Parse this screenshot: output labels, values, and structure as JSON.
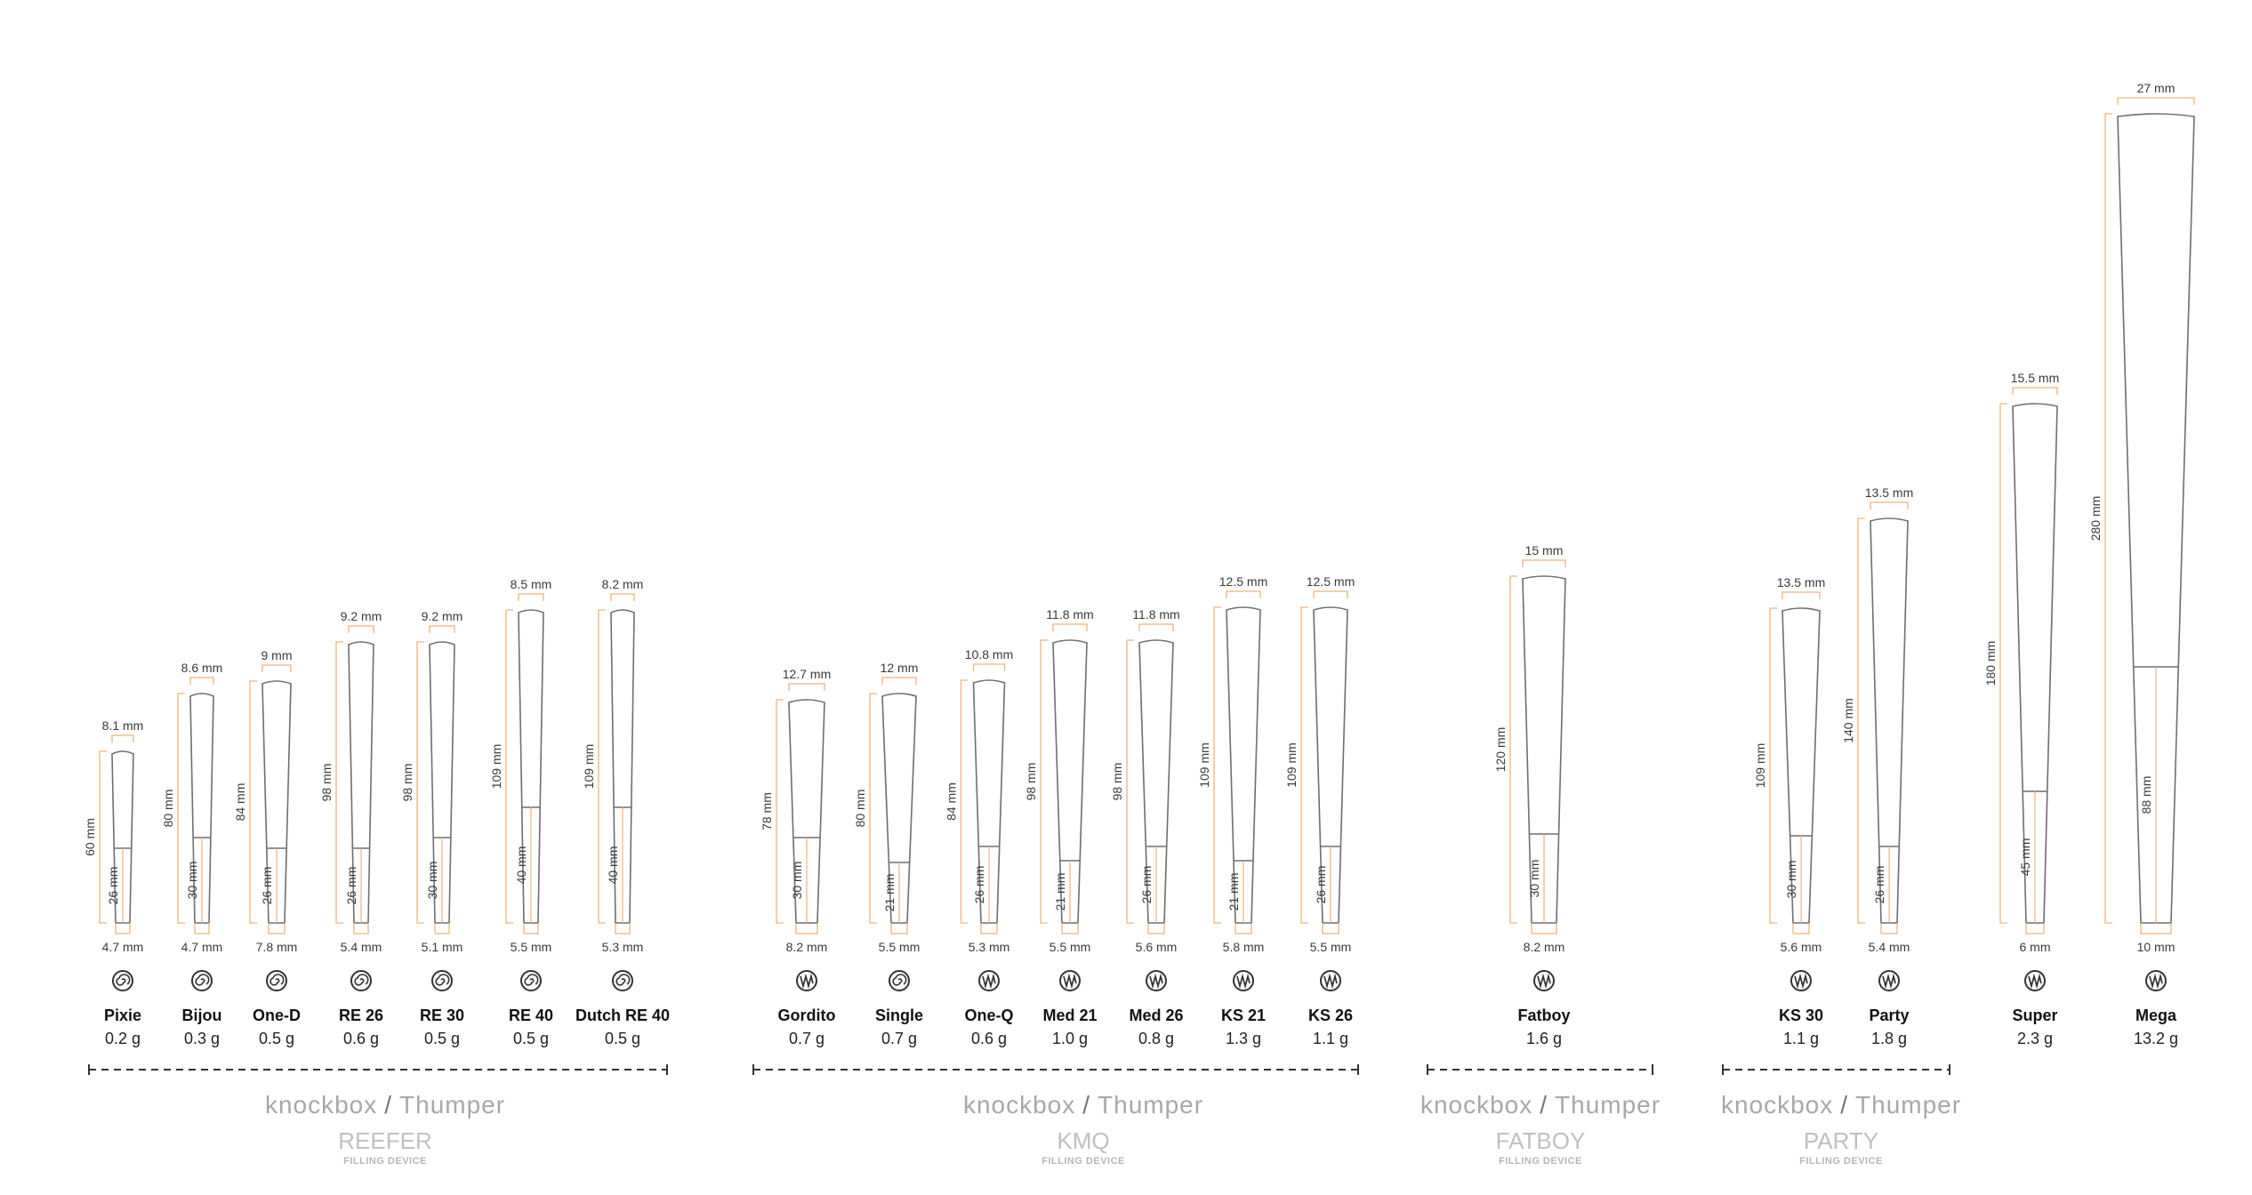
{
  "colors": {
    "accent": "#f0b27a",
    "outline": "#6f6f6f",
    "text": "#222222",
    "brand": "#a8a8a8"
  },
  "cones": [
    {
      "name": "Pixie",
      "weight": "0.2 g",
      "top": "8.1 mm",
      "length": "60 mm",
      "filter": "26 mm",
      "bottom": "4.7 mm",
      "icon": "spiral-filter-icon",
      "length_mm": 60,
      "filter_mm": 26,
      "top_mm": 8.1,
      "bottom_mm": 4.7
    },
    {
      "name": "Bijou",
      "weight": "0.3 g",
      "top": "8.6 mm",
      "length": "80 mm",
      "filter": "30 mm",
      "bottom": "4.7 mm",
      "icon": "spiral-filter-icon",
      "length_mm": 80,
      "filter_mm": 30,
      "top_mm": 8.6,
      "bottom_mm": 4.7
    },
    {
      "name": "One-D",
      "weight": "0.5 g",
      "top": "9 mm",
      "length": "84 mm",
      "filter": "26 mm",
      "bottom": "7.8 mm",
      "icon": "spiral-filter-icon",
      "length_mm": 84,
      "filter_mm": 26,
      "top_mm": 9,
      "bottom_mm": 7.8
    },
    {
      "name": "RE 26",
      "weight": "0.6 g",
      "top": "9.2 mm",
      "length": "98 mm",
      "filter": "26 mm",
      "bottom": "5.4 mm",
      "icon": "spiral-filter-icon",
      "length_mm": 98,
      "filter_mm": 26,
      "top_mm": 9.2,
      "bottom_mm": 5.4
    },
    {
      "name": "RE 30",
      "weight": "0.5 g",
      "top": "9.2 mm",
      "length": "98 mm",
      "filter": "30 mm",
      "bottom": "5.1 mm",
      "icon": "spiral-filter-icon",
      "length_mm": 98,
      "filter_mm": 30,
      "top_mm": 9.2,
      "bottom_mm": 5.1
    },
    {
      "name": "RE 40",
      "weight": "0.5 g",
      "top": "8.5 mm",
      "length": "109 mm",
      "filter": "40 mm",
      "bottom": "5.5 mm",
      "icon": "spiral-filter-icon",
      "length_mm": 109,
      "filter_mm": 40,
      "top_mm": 8.5,
      "bottom_mm": 5.5
    },
    {
      "name": "Dutch RE 40",
      "weight": "0.5 g",
      "top": "8.2 mm",
      "length": "109 mm",
      "filter": "40 mm",
      "bottom": "5.3 mm",
      "icon": "spiral-filter-icon",
      "length_mm": 109,
      "filter_mm": 40,
      "top_mm": 8.2,
      "bottom_mm": 5.3
    },
    {
      "name": "Gordito",
      "weight": "0.7 g",
      "top": "12.7 mm",
      "length": "78 mm",
      "filter": "30 mm",
      "bottom": "8.2 mm",
      "icon": "w-filter-icon",
      "length_mm": 78,
      "filter_mm": 30,
      "top_mm": 12.7,
      "bottom_mm": 8.2
    },
    {
      "name": "Single",
      "weight": "0.7 g",
      "top": "12 mm",
      "length": "80 mm",
      "filter": "21 mm",
      "bottom": "5.5 mm",
      "icon": "spiral-filter-icon",
      "length_mm": 80,
      "filter_mm": 21,
      "top_mm": 12,
      "bottom_mm": 5.5
    },
    {
      "name": "One-Q",
      "weight": "0.6 g",
      "top": "10.8 mm",
      "length": "84 mm",
      "filter": "26 mm",
      "bottom": "5.3 mm",
      "icon": "w-filter-icon",
      "length_mm": 84,
      "filter_mm": 26,
      "top_mm": 10.8,
      "bottom_mm": 5.3
    },
    {
      "name": "Med 21",
      "weight": "1.0 g",
      "top": "11.8 mm",
      "length": "98 mm",
      "filter": "21 mm",
      "bottom": "5.5 mm",
      "icon": "w-filter-icon",
      "length_mm": 98,
      "filter_mm": 21,
      "top_mm": 11.8,
      "bottom_mm": 5.5
    },
    {
      "name": "Med 26",
      "weight": "0.8 g",
      "top": "11.8 mm",
      "length": "98 mm",
      "filter": "26 mm",
      "bottom": "5.6 mm",
      "icon": "w-filter-icon",
      "length_mm": 98,
      "filter_mm": 26,
      "top_mm": 11.8,
      "bottom_mm": 5.6
    },
    {
      "name": "KS 21",
      "weight": "1.3 g",
      "top": "12.5 mm",
      "length": "109 mm",
      "filter": "21 mm",
      "bottom": "5.8 mm",
      "icon": "w-filter-icon",
      "length_mm": 109,
      "filter_mm": 21,
      "top_mm": 12.5,
      "bottom_mm": 5.8
    },
    {
      "name": "KS 26",
      "weight": "1.1 g",
      "top": "12.5 mm",
      "length": "109 mm",
      "filter": "26 mm",
      "bottom": "5.5 mm",
      "icon": "w-filter-icon",
      "length_mm": 109,
      "filter_mm": 26,
      "top_mm": 12.5,
      "bottom_mm": 5.5
    },
    {
      "name": "Fatboy",
      "weight": "1.6 g",
      "top": "15 mm",
      "length": "120 mm",
      "filter": "30 mm",
      "bottom": "8.2 mm",
      "icon": "w-filter-icon",
      "length_mm": 120,
      "filter_mm": 30,
      "top_mm": 15,
      "bottom_mm": 8.2
    },
    {
      "name": "KS 30",
      "weight": "1.1 g",
      "top": "13.5 mm",
      "length": "109 mm",
      "filter": "30 mm",
      "bottom": "5.6 mm",
      "icon": "w-filter-icon",
      "length_mm": 109,
      "filter_mm": 30,
      "top_mm": 13.5,
      "bottom_mm": 5.6
    },
    {
      "name": "Party",
      "weight": "1.8 g",
      "top": "13.5 mm",
      "length": "140 mm",
      "filter": "26 mm",
      "bottom": "5.4 mm",
      "icon": "w-filter-icon",
      "length_mm": 140,
      "filter_mm": 26,
      "top_mm": 13.5,
      "bottom_mm": 5.4
    },
    {
      "name": "Super",
      "weight": "2.3 g",
      "top": "15.5 mm",
      "length": "180 mm",
      "filter": "45 mm",
      "bottom": "6 mm",
      "icon": "w-filter-icon",
      "length_mm": 180,
      "filter_mm": 45,
      "top_mm": 15.5,
      "bottom_mm": 6
    },
    {
      "name": "Mega",
      "weight": "13.2 g",
      "top": "27 mm",
      "length": "280 mm",
      "filter": "88 mm",
      "bottom": "10 mm",
      "icon": "w-filter-icon",
      "length_mm": 280,
      "filter_mm": 88,
      "top_mm": 27,
      "bottom_mm": 10
    }
  ],
  "groups": [
    {
      "brand": "knockbox",
      "separator": "/",
      "device": "Thumper",
      "category": "REEFER",
      "subtitle": "FILLING DEVICE"
    },
    {
      "brand": "knockbox",
      "separator": "/",
      "device": "Thumper",
      "category": "KMQ",
      "subtitle": "FILLING DEVICE"
    },
    {
      "brand": "knockbox",
      "separator": "/",
      "device": "Thumper",
      "category": "FATBOY",
      "subtitle": "FILLING DEVICE"
    },
    {
      "brand": "knockbox",
      "separator": "/",
      "device": "Thumper",
      "category": "PARTY",
      "subtitle": "FILLING DEVICE"
    }
  ]
}
